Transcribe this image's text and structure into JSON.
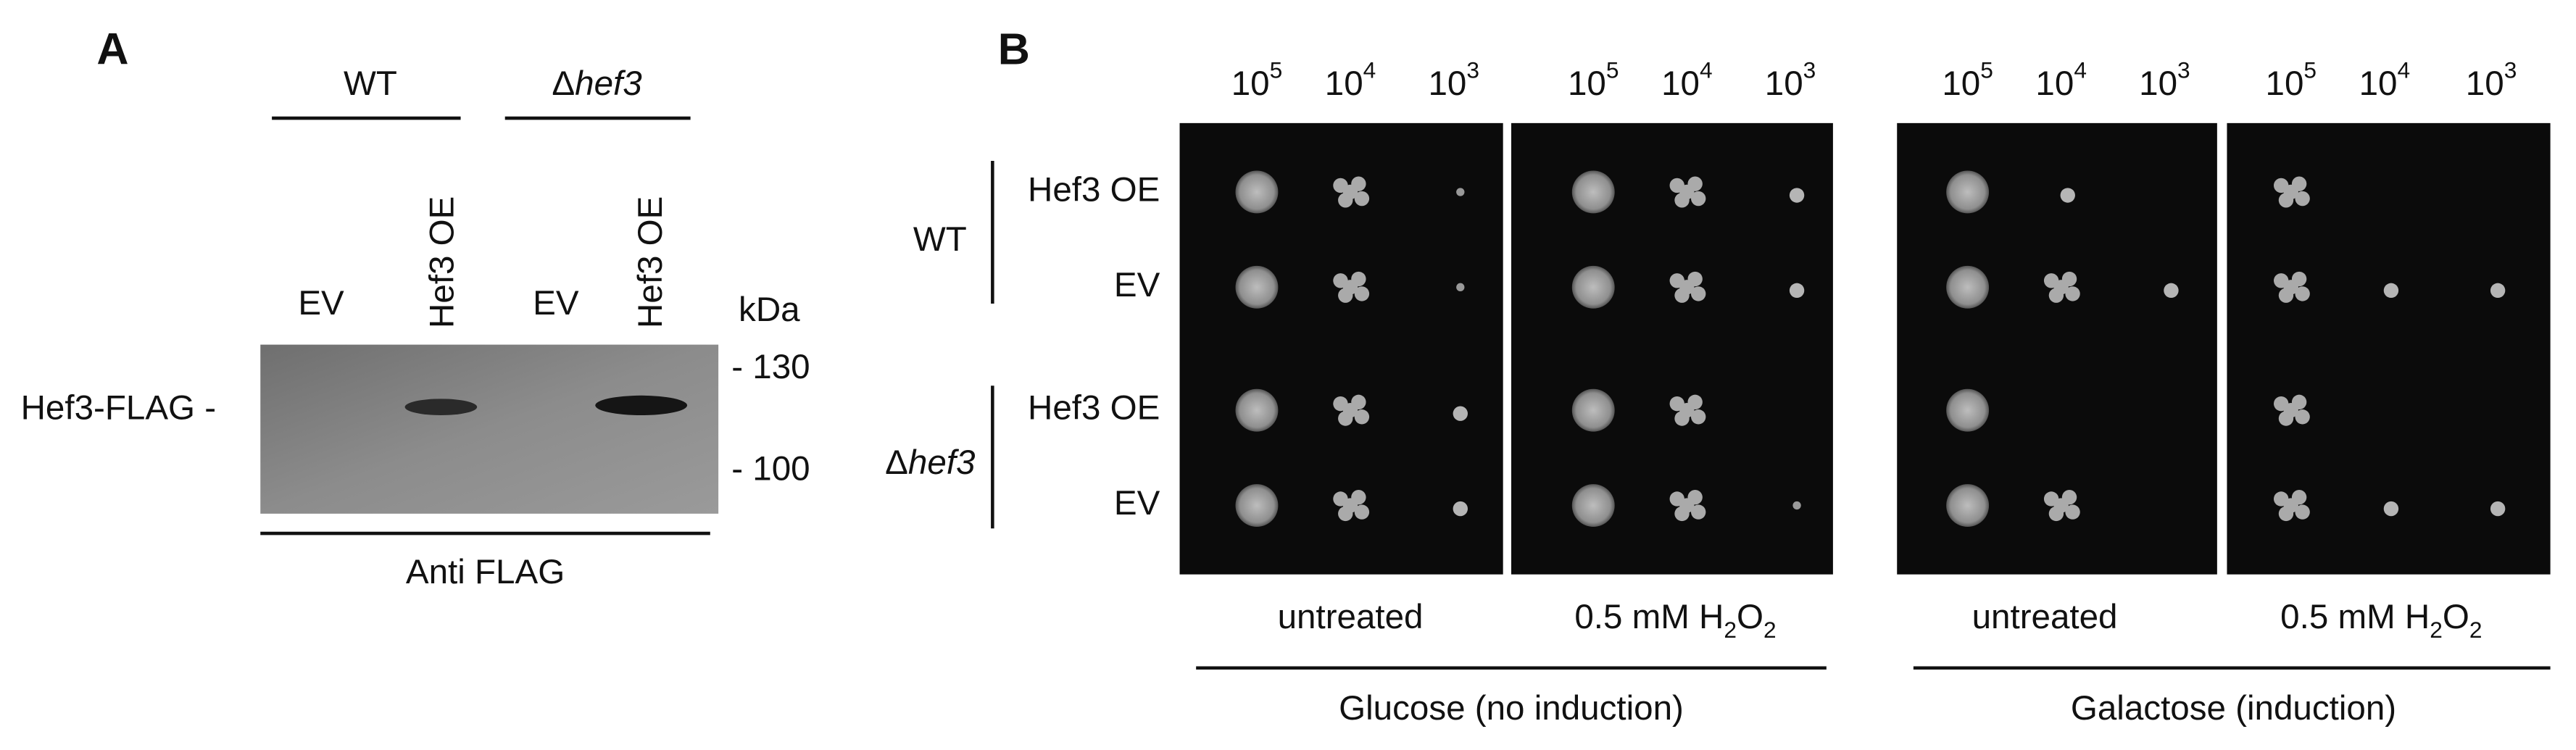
{
  "panel_a": {
    "label": "A",
    "groups": [
      {
        "prefix": "",
        "label": "WT"
      },
      {
        "prefix": "Δ",
        "label": "hef3"
      }
    ],
    "lanes": [
      "EV",
      "Hef3 OE",
      "EV",
      "Hef3 OE"
    ],
    "unit": "kDa",
    "markers": [
      "- 130",
      "- 100"
    ],
    "band_label": "Hef3-FLAG -",
    "antibody": "Anti FLAG"
  },
  "panel_b": {
    "label": "B",
    "plates": [
      {
        "dilutions": [
          {
            "base": "10",
            "exp": "5"
          },
          {
            "base": "10",
            "exp": "4"
          },
          {
            "base": "10",
            "exp": "3"
          }
        ],
        "condition": [
          {
            "text": "untreated"
          }
        ]
      },
      {
        "dilutions": [
          {
            "base": "10",
            "exp": "5"
          },
          {
            "base": "10",
            "exp": "4"
          },
          {
            "base": "10",
            "exp": "3"
          }
        ],
        "condition": [
          {
            "text": "0.5 mM H"
          },
          {
            "sub": "2"
          },
          {
            "text": "O"
          },
          {
            "sub": "2"
          }
        ]
      },
      {
        "dilutions": [
          {
            "base": "10",
            "exp": "5"
          },
          {
            "base": "10",
            "exp": "4"
          },
          {
            "base": "10",
            "exp": "3"
          }
        ],
        "condition": [
          {
            "text": "untreated"
          }
        ]
      },
      {
        "dilutions": [
          {
            "base": "10",
            "exp": "5"
          },
          {
            "base": "10",
            "exp": "4"
          },
          {
            "base": "10",
            "exp": "3"
          }
        ],
        "condition": [
          {
            "text": "0.5 mM H"
          },
          {
            "sub": "2"
          },
          {
            "text": "O"
          },
          {
            "sub": "2"
          }
        ]
      }
    ],
    "strains": [
      {
        "prefix": "",
        "label": "WT",
        "rows": [
          "Hef3 OE",
          "EV"
        ]
      },
      {
        "prefix": "Δ",
        "label": "hef3",
        "rows": [
          "Hef3 OE",
          "EV"
        ]
      }
    ],
    "media": [
      "Glucose (no induction)",
      "Galactose (induction)"
    ]
  }
}
